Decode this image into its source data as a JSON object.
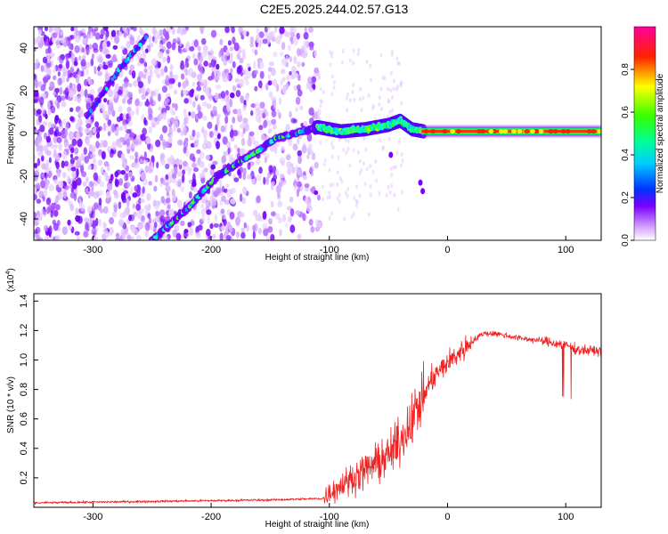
{
  "title": "C2E5.2025.244.02.57.G13",
  "chart_data": [
    {
      "type": "heatmap",
      "name": "spectrogram",
      "xlabel": "Height of straight line (km)",
      "ylabel": "Frequency (Hz)",
      "xlim": [
        -350,
        130
      ],
      "ylim": [
        -50,
        50
      ],
      "xticks": [
        -300,
        -200,
        -100,
        0,
        100
      ],
      "yticks": [
        -40,
        -20,
        0,
        20,
        40
      ],
      "colorbar": {
        "label": "Normalized spectral amplitude",
        "range": [
          0,
          1
        ],
        "ticks": [
          0.0,
          0.2,
          0.4,
          0.6,
          0.8
        ],
        "colors": [
          "#ffffff",
          "#7a00ff",
          "#0033ff",
          "#00ffff",
          "#00ff00",
          "#ffff00",
          "#ff0000",
          "#ff00aa"
        ]
      },
      "ridges": [
        {
          "name": "lower-ridge",
          "x": [
            -250,
            -220,
            -195,
            -175,
            -160,
            -145,
            -130,
            -110,
            -90,
            -70,
            -50,
            -40,
            -30,
            -20,
            0,
            50,
            130
          ],
          "y": [
            -50,
            -35,
            -20,
            -13,
            -8,
            -2,
            0,
            3,
            1,
            2,
            4,
            6,
            2,
            1,
            1,
            1,
            1
          ]
        },
        {
          "name": "upper-ridge",
          "x": [
            -305,
            -290,
            -275,
            -255
          ],
          "y": [
            8,
            20,
            32,
            45
          ]
        }
      ],
      "spots": [
        {
          "x": -23,
          "y": -23
        },
        {
          "x": -21,
          "y": -27
        },
        {
          "x": -48,
          "y": -10
        }
      ]
    },
    {
      "type": "line",
      "name": "snr",
      "xlabel": "Height of straight line (km)",
      "ylabel": "SNR (10 * v/v)",
      "yscale_label": "(x10",
      "yscale_exp": "4",
      "xlim": [
        -350,
        130
      ],
      "ylim": [
        0,
        1.45
      ],
      "xticks": [
        -300,
        -200,
        -100,
        0,
        100
      ],
      "yticks": [
        0.2,
        0.4,
        0.6,
        0.8,
        1.0,
        1.2,
        1.4
      ],
      "color": "#ee2222",
      "x": [
        -350,
        -250,
        -150,
        -105,
        -100,
        -90,
        -80,
        -70,
        -60,
        -50,
        -40,
        -30,
        -20,
        -15,
        -10,
        0,
        10,
        20,
        30,
        40,
        60,
        80,
        100,
        110,
        130
      ],
      "y": [
        0.03,
        0.04,
        0.05,
        0.06,
        0.1,
        0.15,
        0.2,
        0.25,
        0.3,
        0.35,
        0.45,
        0.6,
        0.75,
        0.85,
        0.9,
        0.98,
        1.05,
        1.12,
        1.18,
        1.18,
        1.15,
        1.13,
        1.1,
        1.07,
        1.06
      ]
    }
  ]
}
